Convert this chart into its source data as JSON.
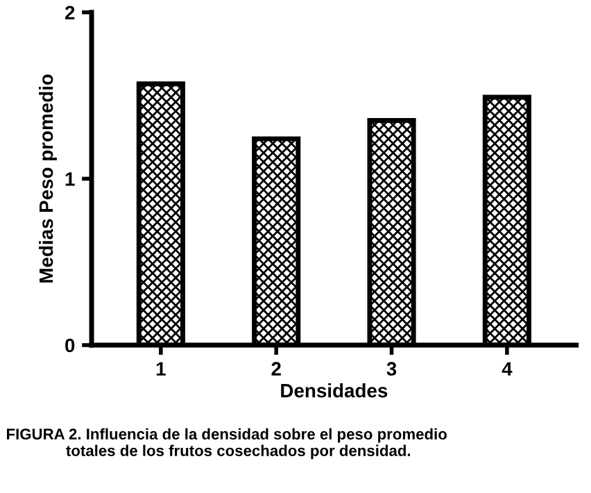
{
  "chart_data": {
    "type": "bar",
    "xlabel": "Densidades",
    "ylabel": "Medias Peso promedio",
    "categories": [
      "1",
      "2",
      "3",
      "4"
    ],
    "values": [
      1.57,
      1.24,
      1.35,
      1.49
    ],
    "color": "#000000",
    "ylim": [
      0,
      2
    ],
    "yticks": [
      0,
      1,
      2
    ],
    "grid": false,
    "legend": false,
    "annotations": [
      "FIGURA 2. Influencia de la densidad sobre el peso promedio\n              totales de los frutos cosechados por densidad."
    ]
  }
}
